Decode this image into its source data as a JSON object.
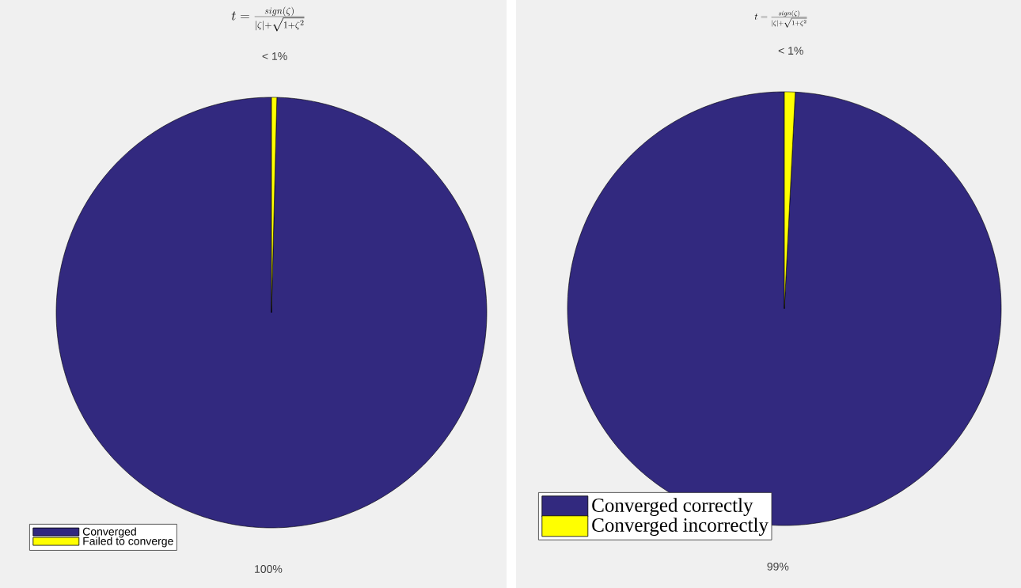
{
  "chart_data": [
    {
      "type": "pie",
      "title": "t = \\frac{sign(\\zeta)}{|\\zeta|+\\sqrt{1+\\zeta^2}}",
      "categories": [
        "Converged",
        "Failed to converge"
      ],
      "values": [
        99.6,
        0.4
      ],
      "colors": [
        "#32297f",
        "#ffff00"
      ],
      "value_labels": [
        "100%",
        "< 1%"
      ],
      "legend": "bottom left"
    },
    {
      "type": "pie",
      "title": "t = \\frac{sign(\\zeta)}{|\\zeta|+\\sqrt{1+\\zeta^2}}",
      "categories": [
        "Converged correctly",
        "Converged incorrectly"
      ],
      "values": [
        99.2,
        0.8
      ],
      "colors": [
        "#32297f",
        "#ffff00"
      ],
      "value_labels": [
        "99%",
        "< 1%"
      ],
      "legend": "bottom left"
    }
  ]
}
